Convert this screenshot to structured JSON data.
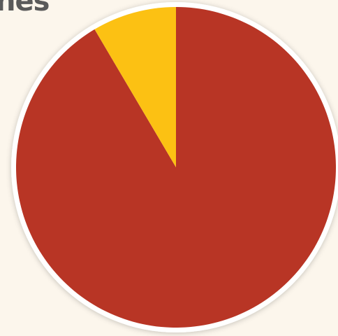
{
  "page": {
    "background_color": "#fcf6ec",
    "title_fragment": "nes"
  },
  "chart_data": {
    "type": "pie",
    "title": "",
    "slices": [
      {
        "value": 91.5,
        "color": "#b83525"
      },
      {
        "value": 8.5,
        "color": "#fcc113"
      }
    ],
    "start": "top",
    "direction": "clockwise",
    "border_color": "#ffffff",
    "legend": "none"
  }
}
